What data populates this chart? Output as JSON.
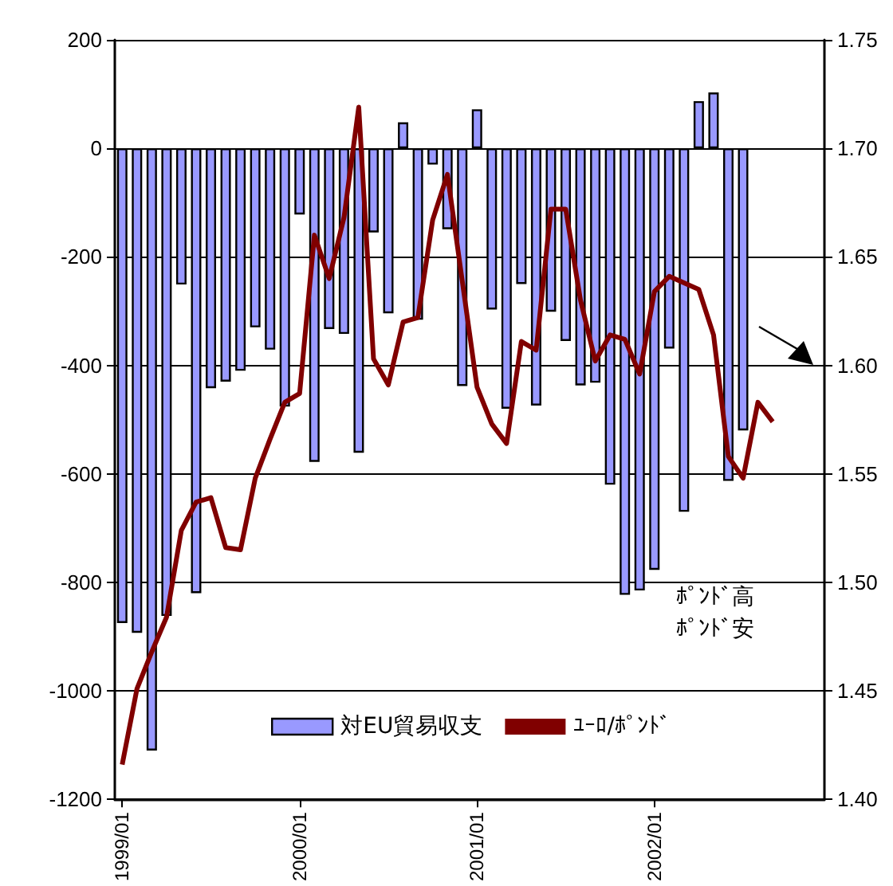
{
  "chart_data": {
    "type": "bar",
    "categories": [
      "1999/01",
      null,
      null,
      null,
      null,
      null,
      null,
      null,
      null,
      null,
      null,
      null,
      "2000/01",
      null,
      null,
      null,
      null,
      null,
      null,
      null,
      null,
      null,
      null,
      null,
      "2001/01",
      null,
      null,
      null,
      null,
      null,
      null,
      null,
      null,
      null,
      null,
      null,
      "2002/01",
      null,
      null,
      null,
      null,
      null,
      null,
      null,
      null,
      null,
      null,
      null
    ],
    "series": [
      {
        "name": "対EU貿易収支",
        "color": "#9999ff",
        "values": [
          -875,
          -893,
          -1110,
          -862,
          -251,
          -820,
          -442,
          -430,
          -410,
          -330,
          -371,
          -476,
          -122,
          -578,
          -333,
          -342,
          -561,
          -155,
          -304,
          48,
          -316,
          -30,
          -149,
          -438,
          72,
          -297,
          -480,
          -250,
          -474,
          -301,
          -355,
          -437,
          -432,
          -620,
          -823,
          -815,
          -777,
          -369,
          -670,
          87,
          103,
          -613,
          -520,
          null,
          null,
          null,
          null,
          null
        ]
      },
      {
        "name": "ﾕｰﾛ/ﾎﾟﾝﾄﾞ",
        "type": "line",
        "axis": "y2",
        "color": "#800000",
        "values": [
          1.416,
          1.451,
          1.468,
          1.484,
          1.524,
          1.537,
          1.539,
          1.516,
          1.515,
          1.548,
          1.566,
          1.583,
          1.587,
          1.66,
          1.64,
          1.668,
          1.719,
          1.603,
          1.591,
          1.62,
          1.622,
          1.667,
          1.688,
          1.639,
          1.59,
          1.573,
          1.564,
          1.611,
          1.607,
          1.672,
          1.672,
          1.63,
          1.602,
          1.614,
          1.612,
          1.596,
          1.634,
          1.641,
          1.638,
          1.635,
          1.614,
          1.558,
          1.548,
          1.583,
          1.574,
          null,
          null,
          null
        ]
      }
    ],
    "ylim": [
      -1200,
      200
    ],
    "yticks": [
      -1200,
      -1000,
      -800,
      -600,
      -400,
      -200,
      0,
      200
    ],
    "y2lim": [
      1.4,
      1.75
    ],
    "y2ticks": [
      {
        "value": 1.4,
        "label": "1.40"
      },
      {
        "value": 1.45,
        "label": "1.45"
      },
      {
        "value": 1.5,
        "label": "1.50"
      },
      {
        "value": 1.55,
        "label": "1.55"
      },
      {
        "value": 1.6,
        "label": "1.60"
      },
      {
        "value": 1.65,
        "label": "1.65"
      },
      {
        "value": 1.7,
        "label": "1.70"
      },
      {
        "value": 1.75,
        "label": "1.75"
      }
    ],
    "annotations": [
      "ﾎﾟﾝﾄﾞ高",
      "ﾎﾟﾝﾄﾞ安"
    ],
    "grid": "y",
    "legend": "bottom",
    "marker": "none",
    "line_style": "solid"
  }
}
